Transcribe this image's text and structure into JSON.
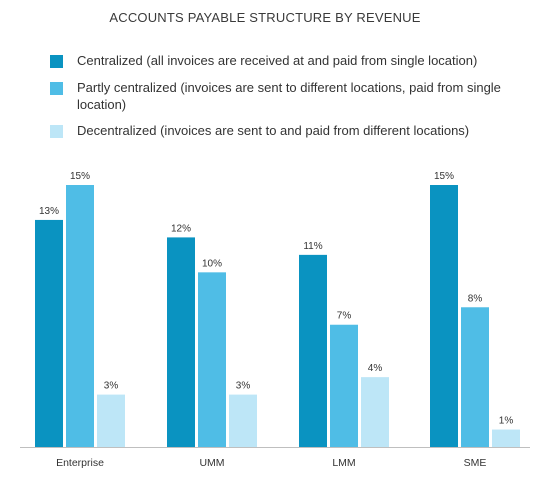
{
  "chart_data": {
    "type": "bar",
    "title": "ACCOUNTS PAYABLE STRUCTURE BY REVENUE",
    "categories": [
      "Enterprise",
      "UMM",
      "LMM",
      "SME"
    ],
    "series": [
      {
        "name": "Centralized (all invoices are received at and paid from single location)",
        "values": [
          13,
          12,
          11,
          15
        ],
        "labels": [
          "13%",
          "12%",
          "11%",
          "15%"
        ],
        "color": "#0a93c1"
      },
      {
        "name": "Partly centralized (invoices are sent to different locations, paid from single location)",
        "values": [
          15,
          10,
          7,
          8
        ],
        "labels": [
          "15%",
          "10%",
          "7%",
          "8%"
        ],
        "color": "#4fbde6"
      },
      {
        "name": "Decentralized (invoices are sent to and paid from different locations)",
        "values": [
          3,
          3,
          4,
          1
        ],
        "labels": [
          "3%",
          "3%",
          "4%",
          "1%"
        ],
        "color": "#bde6f7"
      }
    ],
    "ylim": [
      0,
      15
    ],
    "xlabel": "",
    "ylabel": "",
    "grid": false,
    "legend_position": "top"
  }
}
